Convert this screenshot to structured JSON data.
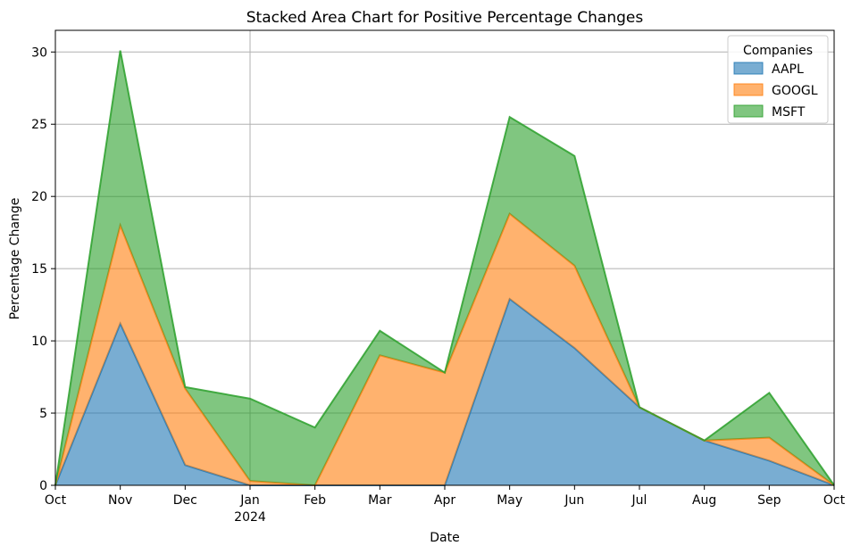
{
  "chart_data": {
    "type": "area",
    "stacked": true,
    "title": "Stacked Area Chart for Positive Percentage Changes",
    "xlabel": "Date",
    "ylabel": "Percentage Change",
    "x": [
      "2023-10",
      "2023-11",
      "2023-12",
      "2024-01",
      "2024-02",
      "2024-03",
      "2024-04",
      "2024-05",
      "2024-06",
      "2024-07",
      "2024-08",
      "2024-09",
      "2024-10"
    ],
    "x_tick_labels": [
      "Oct",
      "Nov",
      "Dec",
      "Jan",
      "Feb",
      "Mar",
      "Apr",
      "May",
      "Jun",
      "Jul",
      "Aug",
      "Sep",
      "Oct"
    ],
    "x_year_label": "2024",
    "ylim": [
      0,
      31.5
    ],
    "y_ticks": [
      0,
      5,
      10,
      15,
      20,
      25,
      30
    ],
    "grid": true,
    "legend": {
      "title": "Companies",
      "placement": "top-right"
    },
    "series": [
      {
        "name": "AAPL",
        "color": "#1f77b4",
        "values": [
          0,
          11.2,
          1.4,
          0,
          0,
          0,
          0,
          12.9,
          9.5,
          5.4,
          3.1,
          1.7,
          0
        ]
      },
      {
        "name": "GOOGL",
        "color": "#ff7f0e",
        "values": [
          0,
          6.8,
          5.3,
          0.3,
          0,
          9.0,
          7.8,
          5.9,
          5.7,
          0,
          0,
          1.6,
          0
        ]
      },
      {
        "name": "MSFT",
        "color": "#2ca02c",
        "values": [
          0,
          12.1,
          0.1,
          5.7,
          4.0,
          1.7,
          0,
          6.7,
          7.6,
          0,
          0,
          3.1,
          0
        ]
      }
    ]
  }
}
